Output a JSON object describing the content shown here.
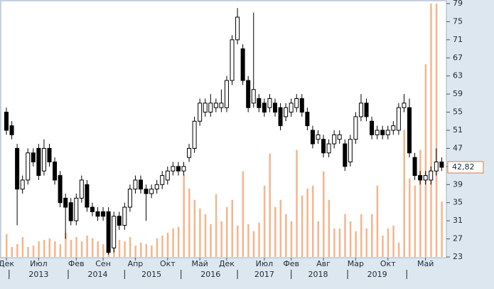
{
  "chart_data": {
    "type": "candlestick",
    "categories": [
      "Дек",
      null,
      null,
      null,
      null,
      null,
      "Июл",
      null,
      null,
      null,
      null,
      null,
      null,
      "Фев",
      null,
      null,
      null,
      null,
      "Сен",
      null,
      null,
      null,
      null,
      null,
      "Апр",
      null,
      null,
      null,
      null,
      null,
      "Окт",
      null,
      null,
      null,
      null,
      null,
      "Май",
      null,
      null,
      null,
      null,
      "Дек",
      null,
      null,
      null,
      null,
      null,
      null,
      "Июл",
      null,
      null,
      null,
      null,
      "Фев",
      null,
      null,
      null,
      null,
      null,
      "Авг",
      null,
      null,
      null,
      null,
      null,
      "Мар",
      null,
      null,
      null,
      null,
      null,
      "Окт",
      null,
      null,
      null,
      null,
      null,
      null,
      "Май",
      null,
      null,
      null
    ],
    "year_labels": [
      null,
      null,
      null,
      null,
      null,
      null,
      "2013",
      null,
      null,
      null,
      null,
      null,
      null,
      null,
      null,
      null,
      null,
      "2014",
      null,
      null,
      null,
      null,
      null,
      null,
      null,
      null,
      null,
      "2015",
      null,
      null,
      null,
      null,
      null,
      null,
      null,
      null,
      null,
      null,
      "2016",
      null,
      null,
      null,
      null,
      null,
      null,
      null,
      null,
      null,
      "2017",
      null,
      null,
      null,
      null,
      null,
      null,
      null,
      null,
      null,
      "2018",
      null,
      null,
      null,
      null,
      null,
      null,
      null,
      null,
      null,
      null,
      "2019",
      null,
      null,
      null,
      null,
      null,
      null,
      null,
      null,
      null,
      null,
      null,
      null
    ],
    "open": [
      55,
      52,
      47,
      38,
      40,
      46,
      47,
      42,
      47,
      44,
      41,
      36,
      35,
      31,
      36,
      39,
      34,
      33,
      33,
      33,
      25,
      32,
      30,
      34,
      38,
      40,
      38,
      37,
      38,
      39,
      40,
      42,
      43,
      42,
      45,
      47,
      53,
      55,
      55,
      56,
      56,
      56,
      62,
      71,
      69,
      62,
      57,
      58,
      57,
      56,
      57,
      56,
      54,
      55,
      56,
      58,
      55,
      51,
      49,
      49,
      46,
      48,
      49,
      48,
      44,
      49,
      54,
      57,
      53,
      50,
      51,
      50,
      51,
      51,
      56,
      56,
      45,
      41,
      40,
      40,
      42,
      44
    ],
    "high": [
      56,
      53,
      48,
      41,
      47,
      47,
      48,
      49,
      48,
      45,
      42,
      37,
      36,
      37,
      41,
      40,
      35,
      34,
      34,
      34,
      33,
      33,
      35,
      39,
      41,
      41,
      39,
      39,
      40,
      42,
      43,
      44,
      44,
      44,
      48,
      54,
      58,
      58,
      59,
      58,
      60,
      63,
      72,
      78,
      70,
      63,
      77,
      59,
      58,
      59,
      58,
      57,
      57,
      58,
      59,
      59,
      56,
      52,
      51,
      50,
      49,
      51,
      51,
      49,
      50,
      55,
      59,
      58,
      54,
      52,
      52,
      52,
      53,
      57,
      59,
      58,
      46,
      42,
      42,
      43,
      47,
      45
    ],
    "low": [
      50,
      49,
      30,
      37,
      39,
      43,
      40,
      41,
      43,
      39,
      34,
      27,
      30,
      30,
      35,
      33,
      32,
      31,
      31,
      23.5,
      24,
      29,
      29,
      33,
      37,
      37,
      31,
      36,
      37,
      38,
      39,
      41,
      41,
      41,
      44,
      46,
      52,
      54,
      54,
      55,
      55,
      55,
      61,
      70,
      61,
      55,
      56,
      55,
      54,
      55,
      54,
      51,
      53,
      54,
      55,
      54,
      51,
      47,
      48,
      45,
      45,
      47,
      48,
      42,
      43,
      48,
      53,
      53,
      49,
      49,
      49,
      49,
      50,
      50,
      55,
      45,
      40,
      39,
      39,
      39,
      41,
      42
    ],
    "close": [
      51,
      50,
      38,
      40,
      46,
      44,
      41,
      47,
      44,
      40,
      35,
      34,
      31,
      36,
      40,
      34,
      33,
      32,
      32,
      24,
      32,
      30,
      34,
      38,
      40,
      38,
      37,
      38,
      39,
      41,
      42,
      43,
      42,
      43,
      47,
      53,
      57,
      57,
      57,
      57,
      57,
      62,
      71,
      76,
      62,
      56,
      60,
      56,
      55,
      58,
      55,
      52,
      56,
      57,
      58,
      55,
      52,
      48,
      50,
      46,
      48,
      50,
      50,
      43,
      49,
      54,
      57,
      54,
      50,
      51,
      50,
      51,
      52,
      56,
      57,
      46,
      41,
      40,
      41,
      42,
      44,
      42.82
    ],
    "volume": [
      32,
      14,
      18,
      28,
      14,
      16,
      22,
      24,
      26,
      22,
      18,
      34,
      24,
      28,
      22,
      30,
      26,
      22,
      18,
      14,
      20,
      24,
      22,
      28,
      16,
      20,
      18,
      16,
      26,
      30,
      34,
      40,
      42,
      116,
      96,
      80,
      68,
      60,
      46,
      88,
      50,
      70,
      80,
      44,
      120,
      46,
      36,
      48,
      100,
      145,
      70,
      80,
      60,
      50,
      150,
      86,
      96,
      100,
      50,
      120,
      80,
      40,
      40,
      60,
      50,
      36,
      60,
      40,
      60,
      100,
      30,
      40,
      44,
      20,
      178,
      110,
      100,
      150,
      270,
      355,
      355,
      78
    ],
    "up_color": "#ffffff",
    "down_color": "#000000",
    "volume_color": "#f6b48c",
    "ylim": [
      23,
      79
    ],
    "yticks": [
      23,
      27,
      31,
      35,
      39,
      43,
      47,
      51,
      55,
      59,
      63,
      67,
      71,
      75,
      79
    ],
    "last_price": {
      "value": 42.82,
      "label": "42,82"
    }
  }
}
